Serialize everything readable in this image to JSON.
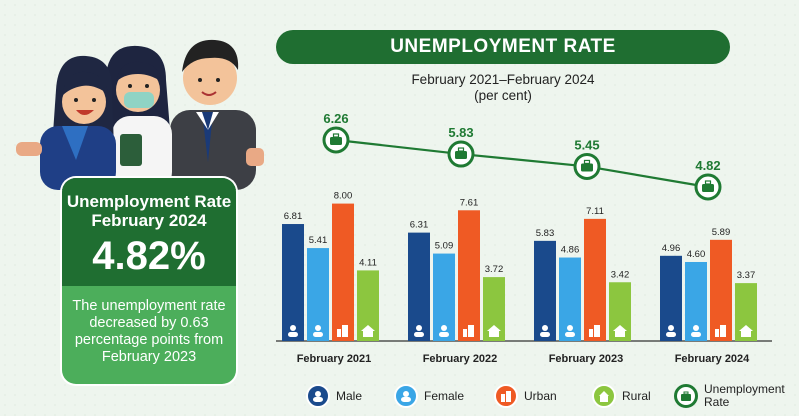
{
  "card": {
    "label_line1": "Unemployment Rate",
    "label_line2": "February 2024",
    "value": "4.82%",
    "description": "The unemployment rate decreased by 0.63 percentage points from February 2023"
  },
  "legend": {
    "male": "Male",
    "female": "Female",
    "urban": "Urban",
    "rural": "Rural",
    "unemployment_line1": "Unemployment",
    "unemployment_line2": "Rate"
  },
  "colors": {
    "male": "#1a4a8c",
    "female": "#3aa6e6",
    "urban": "#ef5a24",
    "rural": "#8cc63f",
    "line": "#1f7a33",
    "dark_green": "#1f6e31"
  },
  "chart_data": {
    "type": "bar",
    "title": "UNEMPLOYMENT RATE",
    "subtitle_line1": "February 2021–February 2024",
    "subtitle_line2": "(per cent)",
    "categories": [
      "February 2021",
      "February 2022",
      "February 2023",
      "February 2024"
    ],
    "series": [
      {
        "name": "Male",
        "values": [
          6.81,
          6.31,
          5.83,
          4.96
        ]
      },
      {
        "name": "Female",
        "values": [
          5.41,
          5.09,
          4.86,
          4.6
        ]
      },
      {
        "name": "Urban",
        "values": [
          8.0,
          7.61,
          7.11,
          5.89
        ]
      },
      {
        "name": "Rural",
        "values": [
          4.11,
          3.72,
          3.42,
          3.37
        ]
      }
    ],
    "line_series": {
      "name": "Unemployment Rate",
      "values": [
        6.26,
        5.83,
        5.45,
        4.82
      ]
    },
    "value_labels": {
      "Male": [
        "6.81",
        "6.31",
        "5.83",
        "4.96"
      ],
      "Female": [
        "5.41",
        "5.09",
        "4.86",
        "4.60"
      ],
      "Urban": [
        "8.00",
        "7.61",
        "7.11",
        "5.89"
      ],
      "Rural": [
        "4.11",
        "3.72",
        "3.42",
        "3.37"
      ],
      "Unemployment Rate": [
        "6.26",
        "5.83",
        "5.45",
        "4.82"
      ]
    },
    "ylim": [
      0,
      8.5
    ],
    "legend_position": "bottom"
  }
}
